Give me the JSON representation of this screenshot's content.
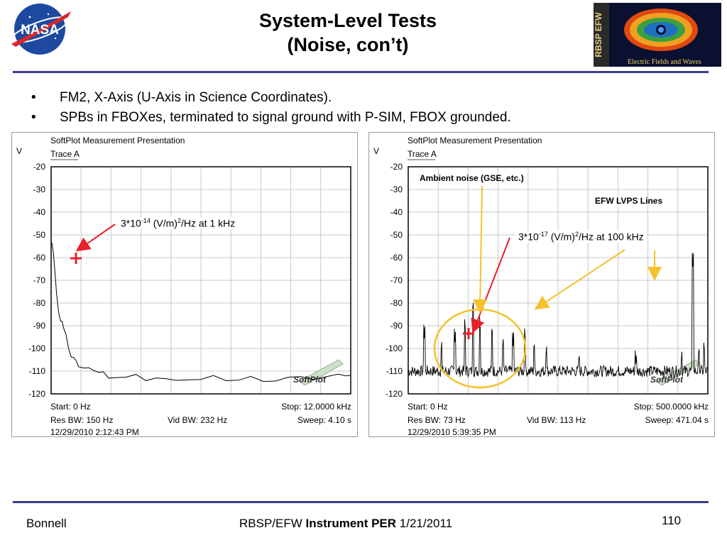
{
  "header": {
    "title_line1": "System-Level Tests",
    "title_line2": "(Noise, con’t)",
    "nasa_logo_text": "NASA",
    "rbsp_logo_side": "RBSP EFW",
    "rbsp_logo_caption": "Electric Fields and Waves"
  },
  "bullets": [
    "FM2, X-Axis (U-Axis in Science Coordinates).",
    "SPBs in FBOXes, terminated to signal ground with P-SIM, FBOX grounded."
  ],
  "annotations": {
    "left_note_base": "3*10",
    "left_note_exp": "-14",
    "left_note_mid": " (V/m)",
    "left_note_exp2": "2",
    "left_note_tail": "/Hz at 1 kHz",
    "right_note_base": "3*10",
    "right_note_exp": "-17",
    "right_note_mid": " (V/m)",
    "right_note_exp2": "2",
    "right_note_tail": "/Hz at 100 kHz",
    "ambient_label": "Ambient noise (GSE, etc.)",
    "lvps_label": "EFW LVPS Lines"
  },
  "footer": {
    "author": "Bonnell",
    "center_prefix": "RBSP/EFW ",
    "center_bold": "Instrument PER",
    "center_suffix": " 1/21/2011",
    "page_number": "110"
  },
  "colors": {
    "rule": "#3c3c8c",
    "arrow_red": "#e8202a",
    "arrow_yellow": "#f5c12c",
    "trace": "#000000",
    "grid": "#c8c8c8"
  },
  "chart_data": [
    {
      "type": "line",
      "title": "SoftPlot Measurement Presentation",
      "subtitle": "Trace A",
      "ylabel": "V",
      "ylim": [
        -120,
        -20
      ],
      "yticks": [
        -20,
        -30,
        -40,
        -50,
        -60,
        -70,
        -80,
        -90,
        -100,
        -110,
        -120
      ],
      "xlim": [
        0,
        12000
      ],
      "watermark": "SoftPlot",
      "info": {
        "start": "Start: 0 Hz",
        "stop": "Stop: 12.0000 kHz",
        "res_bw": "Res BW: 150 Hz",
        "vid_bw": "Vid BW: 232 Hz",
        "sweep": "Sweep: 4.10 s",
        "timestamp": "12/29/2010 2:12:43 PM"
      },
      "series": [
        {
          "values": [
            [
              0,
              -53
            ],
            [
              40,
              -54
            ],
            [
              90,
              -58
            ],
            [
              150,
              -66
            ],
            [
              220,
              -76
            ],
            [
              300,
              -84
            ],
            [
              380,
              -88
            ],
            [
              440,
              -88
            ],
            [
              500,
              -91
            ],
            [
              600,
              -94
            ],
            [
              700,
              -100
            ],
            [
              800,
              -103
            ],
            [
              900,
              -104
            ],
            [
              1000,
              -106
            ],
            [
              1100,
              -107
            ],
            [
              1200,
              -108
            ],
            [
              1350,
              -109
            ],
            [
              1500,
              -109.5
            ],
            [
              1700,
              -109
            ],
            [
              1900,
              -110.5
            ],
            [
              2100,
              -111
            ],
            [
              2300,
              -112
            ],
            [
              2600,
              -112.5
            ],
            [
              3000,
              -113
            ],
            [
              3400,
              -112.5
            ],
            [
              3800,
              -113.5
            ],
            [
              4200,
              -113
            ],
            [
              4600,
              -114
            ],
            [
              5000,
              -113
            ],
            [
              5500,
              -113.5
            ],
            [
              6000,
              -114
            ],
            [
              6500,
              -113
            ],
            [
              7000,
              -113.5
            ],
            [
              7500,
              -114
            ],
            [
              8000,
              -113
            ],
            [
              8500,
              -113.5
            ],
            [
              9000,
              -114
            ],
            [
              9500,
              -113
            ],
            [
              10000,
              -113.5
            ],
            [
              10500,
              -113
            ],
            [
              11000,
              -112.5
            ],
            [
              11500,
              -112
            ],
            [
              11800,
              -111
            ],
            [
              12000,
              -111.5
            ]
          ]
        }
      ]
    },
    {
      "type": "line",
      "title": "SoftPlot Measurement Presentation",
      "subtitle": "Trace A",
      "ylabel": "V",
      "ylim": [
        -120,
        -20
      ],
      "yticks": [
        -20,
        -30,
        -40,
        -50,
        -60,
        -70,
        -80,
        -90,
        -100,
        -110,
        -120
      ],
      "xlim": [
        0,
        500000
      ],
      "watermark": "SoftPlot",
      "info": {
        "start": "Start: 0 Hz",
        "stop": "Stop: 500.0000 kHz",
        "res_bw": "Res BW: 73 Hz",
        "vid_bw": "Vid BW: 113 Hz",
        "sweep": "Sweep: 471.04 s",
        "timestamp": "12/29/2010 5:39:35 PM"
      },
      "baseline": -110,
      "peaks": [
        [
          27000,
          -96
        ],
        [
          55000,
          -102
        ],
        [
          78000,
          -98
        ],
        [
          95000,
          -92
        ],
        [
          108000,
          -84
        ],
        [
          120000,
          -91
        ],
        [
          140000,
          -95
        ],
        [
          158000,
          -100
        ],
        [
          175000,
          -99
        ],
        [
          195000,
          -96
        ],
        [
          210000,
          -102
        ],
        [
          230000,
          -104
        ],
        [
          285000,
          -107
        ],
        [
          380000,
          -108
        ],
        [
          475000,
          -64
        ],
        [
          456000,
          -106
        ],
        [
          485000,
          -104
        ],
        [
          494000,
          -102
        ]
      ]
    }
  ]
}
